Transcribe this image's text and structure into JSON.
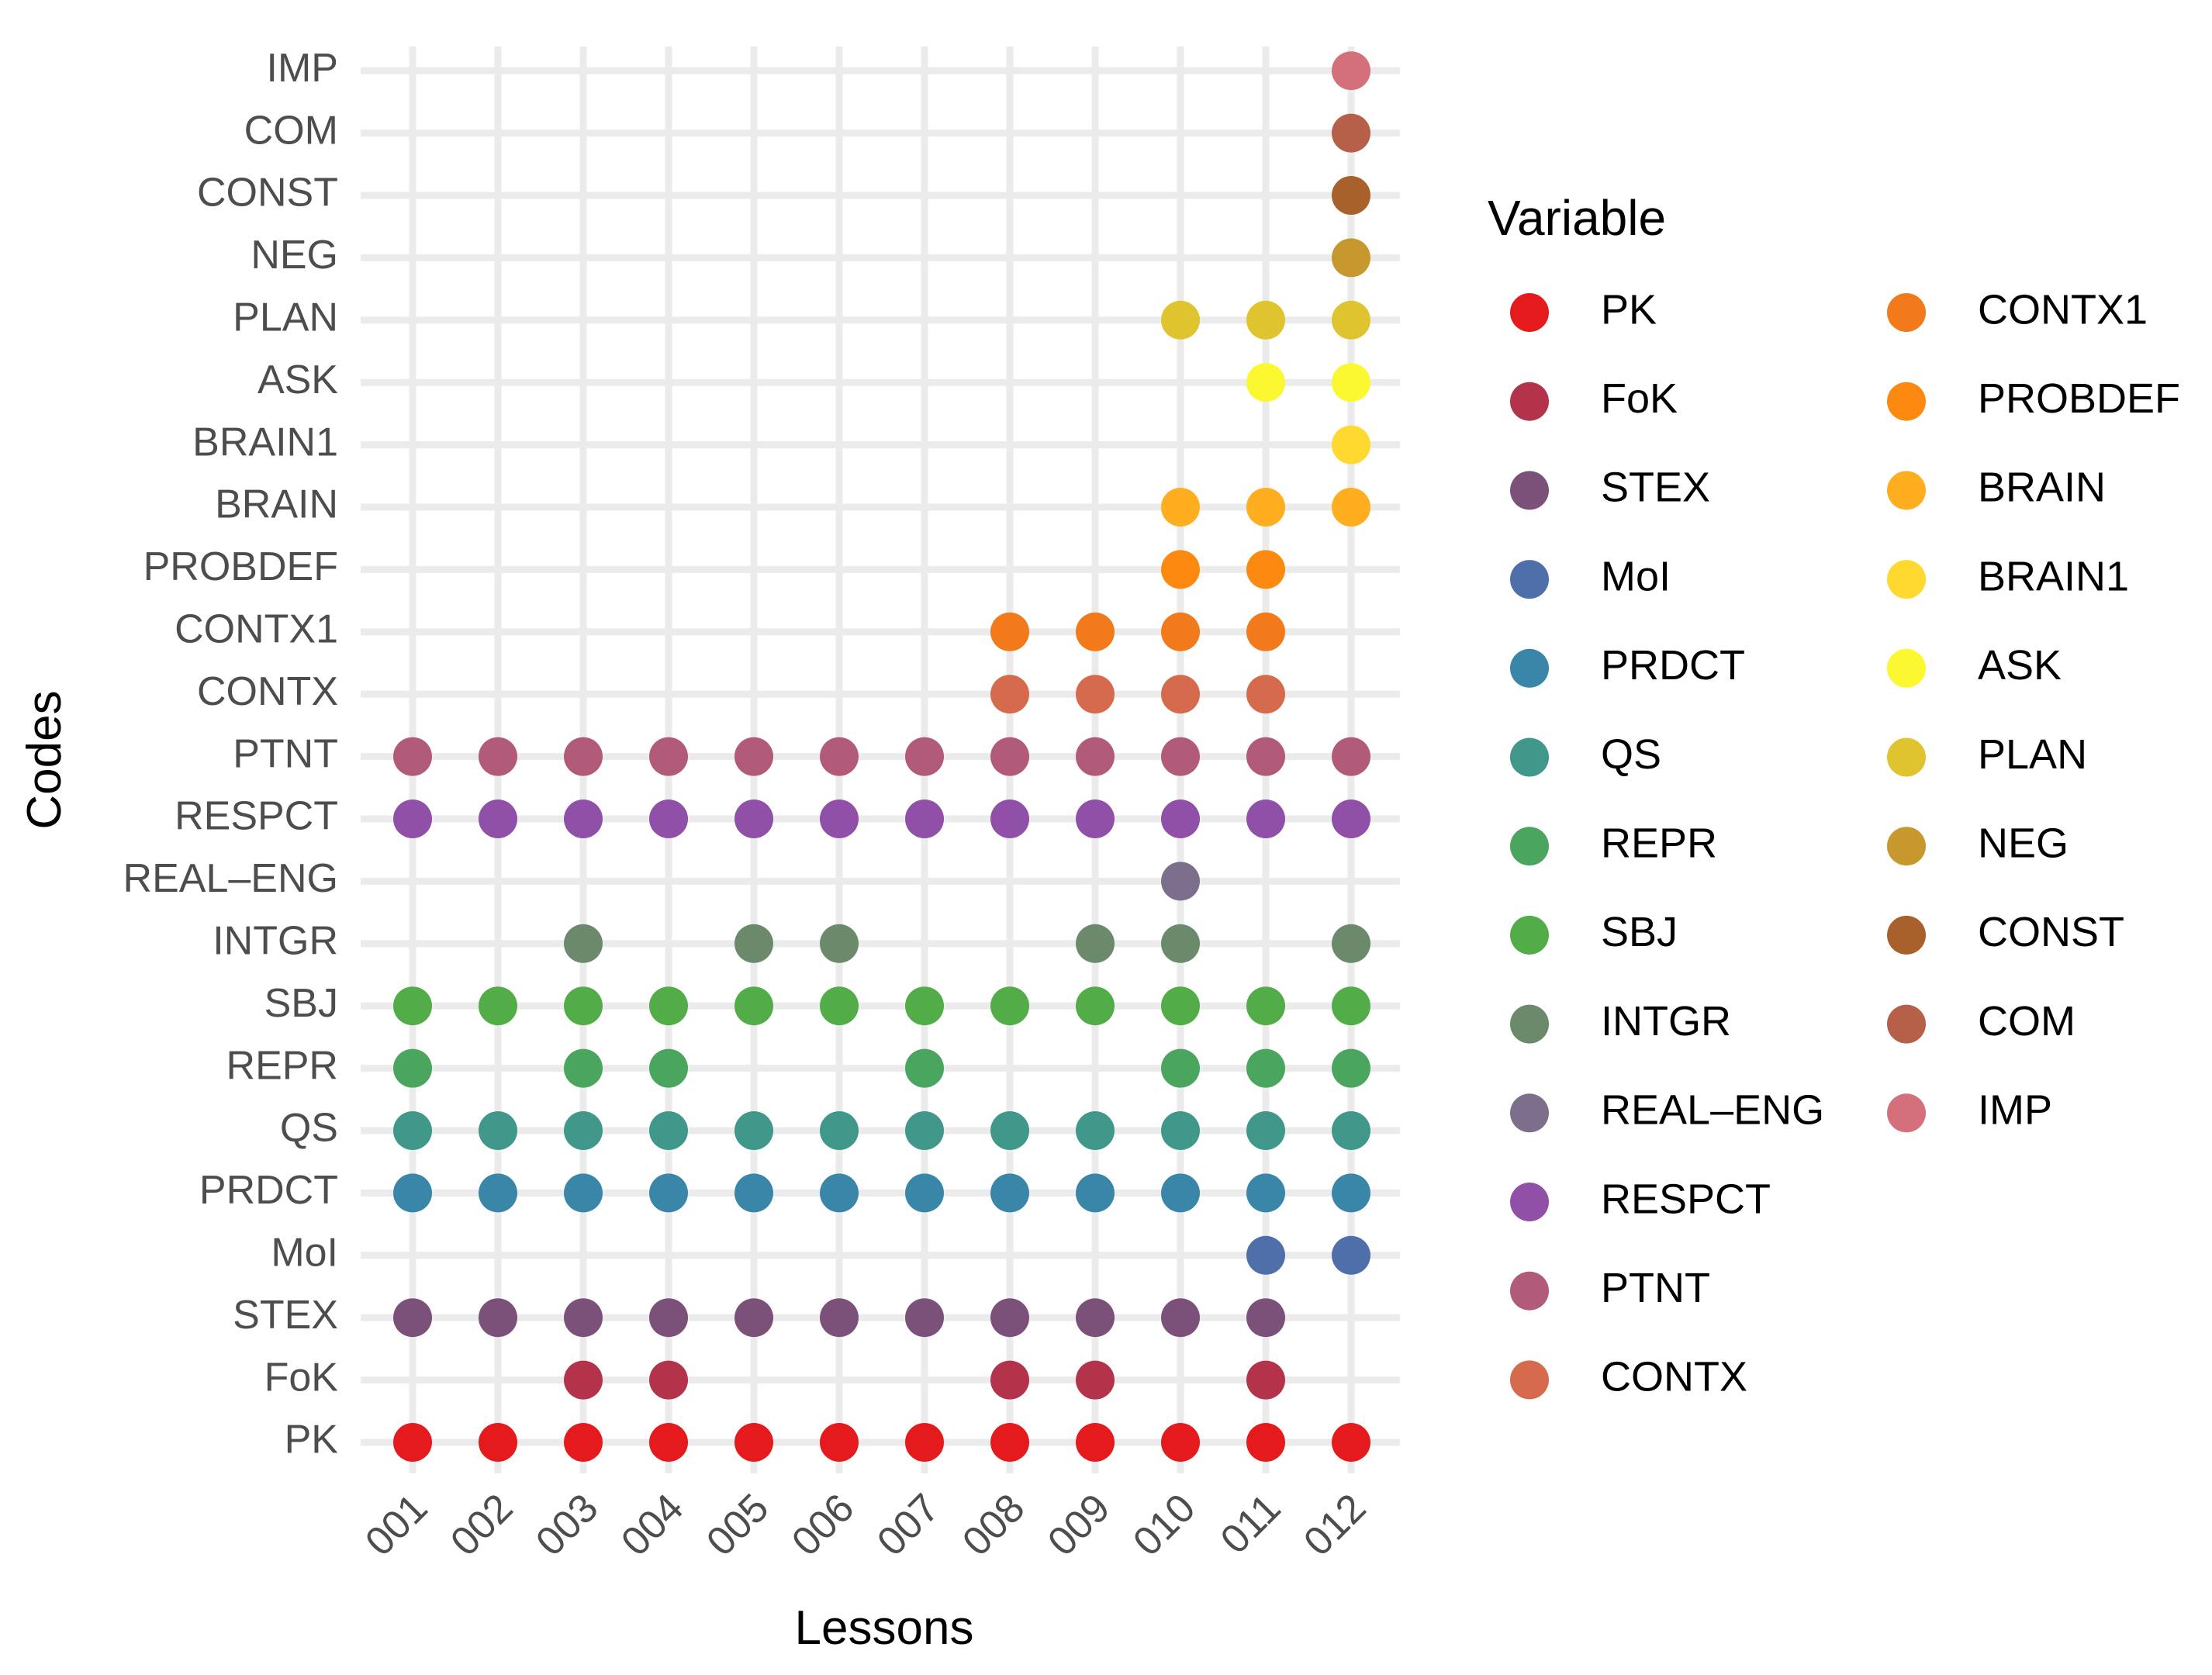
{
  "chart_data": {
    "type": "scatter",
    "title": "",
    "xlabel": "Lessons",
    "ylabel": "Codes",
    "x_categories": [
      "001",
      "002",
      "003",
      "004",
      "005",
      "006",
      "007",
      "008",
      "009",
      "010",
      "011",
      "012"
    ],
    "y_categories": [
      "PK",
      "FoK",
      "STEX",
      "MoI",
      "PRDCT",
      "QS",
      "REPR",
      "SBJ",
      "INTGR",
      "REAL–ENG",
      "RESPCT",
      "PTNT",
      "CONTX",
      "CONTX1",
      "PROBDEF",
      "BRAIN",
      "BRAIN1",
      "ASK",
      "PLAN",
      "NEG",
      "CONST",
      "COM",
      "IMP"
    ],
    "legend_title": "Variable",
    "legend_position": "right",
    "grid": true,
    "series": [
      {
        "name": "PK",
        "color": "#e41a1c",
        "lessons": [
          "001",
          "002",
          "003",
          "004",
          "005",
          "006",
          "007",
          "008",
          "009",
          "010",
          "011",
          "012"
        ]
      },
      {
        "name": "FoK",
        "color": "#b2334a",
        "lessons": [
          "003",
          "004",
          "008",
          "009",
          "011"
        ]
      },
      {
        "name": "STEX",
        "color": "#7b517a",
        "lessons": [
          "001",
          "002",
          "003",
          "004",
          "005",
          "006",
          "007",
          "008",
          "009",
          "010",
          "011"
        ]
      },
      {
        "name": "MoI",
        "color": "#4f6fab",
        "lessons": [
          "011",
          "012"
        ]
      },
      {
        "name": "PRDCT",
        "color": "#3a86a8",
        "lessons": [
          "001",
          "002",
          "003",
          "004",
          "005",
          "006",
          "007",
          "008",
          "009",
          "010",
          "011",
          "012"
        ]
      },
      {
        "name": "QS",
        "color": "#3f9889",
        "lessons": [
          "001",
          "002",
          "003",
          "004",
          "005",
          "006",
          "007",
          "008",
          "009",
          "010",
          "011",
          "012"
        ]
      },
      {
        "name": "REPR",
        "color": "#4aa65f",
        "lessons": [
          "001",
          "003",
          "004",
          "007",
          "010",
          "011",
          "012"
        ]
      },
      {
        "name": "SBJ",
        "color": "#52ad49",
        "lessons": [
          "001",
          "002",
          "003",
          "004",
          "005",
          "006",
          "007",
          "008",
          "009",
          "010",
          "011",
          "012"
        ]
      },
      {
        "name": "INTGR",
        "color": "#6a8a6b",
        "lessons": [
          "003",
          "005",
          "006",
          "009",
          "010",
          "012"
        ]
      },
      {
        "name": "REAL–ENG",
        "color": "#7d6f8c",
        "lessons": [
          "010"
        ]
      },
      {
        "name": "RESPCT",
        "color": "#9150a8",
        "lessons": [
          "001",
          "002",
          "003",
          "004",
          "005",
          "006",
          "007",
          "008",
          "009",
          "010",
          "011",
          "012"
        ]
      },
      {
        "name": "PTNT",
        "color": "#b25a7a",
        "lessons": [
          "001",
          "002",
          "003",
          "004",
          "005",
          "006",
          "007",
          "008",
          "009",
          "010",
          "011",
          "012"
        ]
      },
      {
        "name": "CONTX",
        "color": "#d66a4c",
        "lessons": [
          "008",
          "009",
          "010",
          "011"
        ]
      },
      {
        "name": "CONTX1",
        "color": "#f27a1a",
        "lessons": [
          "008",
          "009",
          "010",
          "011"
        ]
      },
      {
        "name": "PROBDEF",
        "color": "#fd8a10",
        "lessons": [
          "010",
          "011"
        ]
      },
      {
        "name": "BRAIN",
        "color": "#feae1f",
        "lessons": [
          "010",
          "011",
          "012"
        ]
      },
      {
        "name": "BRAIN1",
        "color": "#ffd92f",
        "lessons": [
          "012"
        ]
      },
      {
        "name": "ASK",
        "color": "#fbf832",
        "lessons": [
          "011",
          "012"
        ]
      },
      {
        "name": "PLAN",
        "color": "#e0c42f",
        "lessons": [
          "010",
          "011",
          "012"
        ]
      },
      {
        "name": "NEG",
        "color": "#c7982e",
        "lessons": [
          "012"
        ]
      },
      {
        "name": "CONST",
        "color": "#a8612a",
        "lessons": [
          "012"
        ]
      },
      {
        "name": "COM",
        "color": "#b6604a",
        "lessons": [
          "012"
        ]
      },
      {
        "name": "IMP",
        "color": "#d4707c",
        "lessons": [
          "012"
        ]
      }
    ]
  }
}
